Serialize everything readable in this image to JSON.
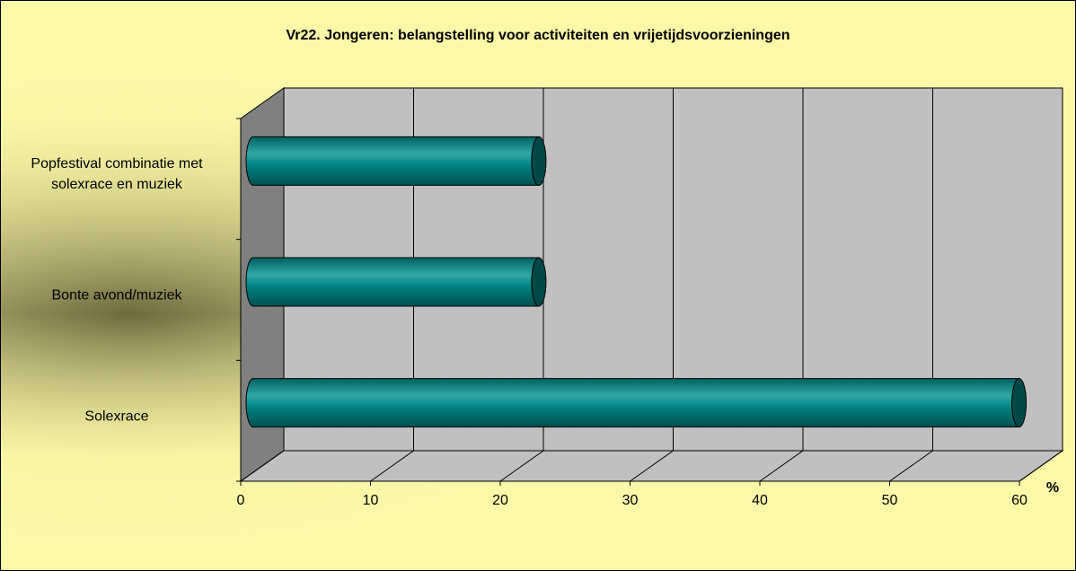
{
  "chart_data": {
    "type": "bar",
    "orientation": "horizontal",
    "title": "Vr22. Jongeren: belangstelling voor activiteiten en vrijetijdsvoorzieningen",
    "categories": [
      "Popfestival combinatie met solexrace en muziek",
      "Bonte avond/muziek",
      "Solexrace"
    ],
    "values": [
      22,
      22,
      59
    ],
    "color": "#008080",
    "xlabel": "%",
    "xlim": [
      0,
      60
    ],
    "xticks": [
      0,
      10,
      20,
      30,
      40,
      50,
      60
    ],
    "grid": true
  }
}
